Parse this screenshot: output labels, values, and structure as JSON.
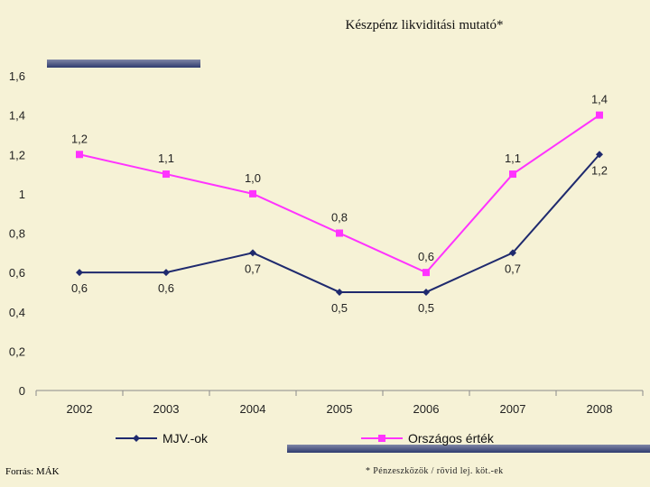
{
  "page": {
    "footer_source": "Forrás: MÁK",
    "footnote": "* Pénzeszközök / rövid lej. köt.-ek"
  },
  "chart_data": {
    "type": "line",
    "title": "Készpénz likviditási mutató*",
    "categories": [
      "2002",
      "2003",
      "2004",
      "2005",
      "2006",
      "2007",
      "2008"
    ],
    "ylim": [
      0,
      1.6
    ],
    "yticks": [
      "0",
      "0,2",
      "0,4",
      "0,6",
      "0,8",
      "1",
      "1,2",
      "1,4",
      "1,6"
    ],
    "grid": false,
    "legend_position": "bottom",
    "series": [
      {
        "name": "MJV.-ok",
        "color": "#1f2a6e",
        "marker": "diamond",
        "values": [
          0.6,
          0.6,
          0.7,
          0.5,
          0.5,
          0.7,
          1.2
        ],
        "labels": [
          "0,6",
          "0,6",
          "0,7",
          "0,5",
          "0,5",
          "0,7",
          "1,2"
        ]
      },
      {
        "name": "Országos érték",
        "color": "#ff33ff",
        "marker": "square",
        "values": [
          1.2,
          1.1,
          1.0,
          0.8,
          0.6,
          1.1,
          1.4
        ],
        "labels": [
          "1,2",
          "1,1",
          "1,0",
          "0,8",
          "0,6",
          "1,1",
          "1,4"
        ]
      }
    ]
  }
}
